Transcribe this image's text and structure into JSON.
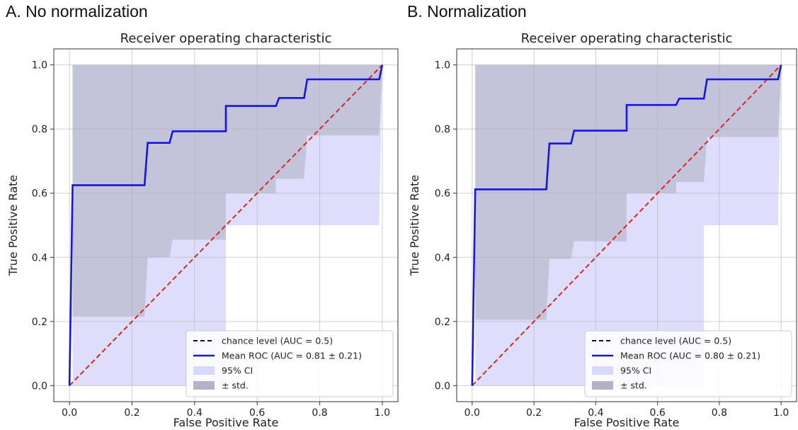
{
  "panels": [
    {
      "heading": "A. No normalization"
    },
    {
      "heading": "B. Normalization"
    }
  ],
  "chart_data": [
    {
      "type": "line",
      "title": "Receiver operating characteristic",
      "xlabel": "False Positive Rate",
      "ylabel": "True Positive Rate",
      "xlim": [
        -0.05,
        1.05
      ],
      "ylim": [
        -0.05,
        1.05
      ],
      "xticks": [
        "0.0",
        "0.2",
        "0.4",
        "0.6",
        "0.8",
        "1.0"
      ],
      "yticks": [
        "0.0",
        "0.2",
        "0.4",
        "0.6",
        "0.8",
        "1.0"
      ],
      "grid": true,
      "legend_position": "lower-right",
      "colors": {
        "chance": "#d62728",
        "mean": "#1515e6",
        "ci": "#d8d8fc",
        "std": "#b3b3c7"
      },
      "series": [
        {
          "name": "chance level (AUC = 0.5)",
          "kind": "line",
          "style": "dashed",
          "x": [
            0,
            1
          ],
          "y": [
            0,
            1
          ]
        },
        {
          "name": "Mean ROC (AUC = 0.81 ± 0.21)",
          "kind": "step",
          "x": [
            0,
            0.01,
            0.01,
            0.24,
            0.25,
            0.32,
            0.33,
            0.5,
            0.5,
            0.66,
            0.67,
            0.75,
            0.76,
            0.99,
            1.0
          ],
          "y": [
            0,
            0.625,
            0.625,
            0.625,
            0.757,
            0.757,
            0.793,
            0.793,
            0.872,
            0.872,
            0.897,
            0.897,
            0.955,
            0.955,
            1.0
          ]
        },
        {
          "name": "95% CI",
          "kind": "band",
          "x": [
            0.01,
            0.5,
            0.5,
            0.99,
            0.99,
            1.0
          ],
          "upper": [
            1.0,
            1.0,
            1.0,
            1.0,
            1.0,
            1.0
          ],
          "lower": [
            0.0,
            0.0,
            0.5,
            0.5,
            0.5,
            1.0
          ]
        },
        {
          "name": "± std.",
          "kind": "band",
          "x": [
            0.01,
            0.24,
            0.25,
            0.32,
            0.33,
            0.5,
            0.5,
            0.66,
            0.66,
            0.75,
            0.76,
            0.99,
            0.99,
            1.0
          ],
          "upper": [
            1.0,
            1.0,
            1.0,
            1.0,
            1.0,
            1.0,
            1.0,
            1.0,
            1.0,
            1.0,
            1.0,
            1.0,
            1.0,
            1.0
          ],
          "lower": [
            0.215,
            0.215,
            0.4,
            0.4,
            0.455,
            0.455,
            0.6,
            0.6,
            0.645,
            0.645,
            0.78,
            0.78,
            0.78,
            1.0
          ]
        }
      ]
    },
    {
      "type": "line",
      "title": "Receiver operating characteristic",
      "xlabel": "False Positive Rate",
      "ylabel": "True Positive Rate",
      "xlim": [
        -0.05,
        1.05
      ],
      "ylim": [
        -0.05,
        1.05
      ],
      "xticks": [
        "0.0",
        "0.2",
        "0.4",
        "0.6",
        "0.8",
        "1.0"
      ],
      "yticks": [
        "0.0",
        "0.2",
        "0.4",
        "0.6",
        "0.8",
        "1.0"
      ],
      "grid": true,
      "legend_position": "lower-right",
      "colors": {
        "chance": "#d62728",
        "mean": "#1515e6",
        "ci": "#d8d8fc",
        "std": "#b3b3c7"
      },
      "series": [
        {
          "name": "chance level (AUC = 0.5)",
          "kind": "line",
          "style": "dashed",
          "x": [
            0,
            1
          ],
          "y": [
            0,
            1
          ]
        },
        {
          "name": "Mean ROC (AUC = 0.80 ± 0.21)",
          "kind": "step",
          "x": [
            0,
            0.01,
            0.01,
            0.24,
            0.25,
            0.32,
            0.33,
            0.5,
            0.5,
            0.66,
            0.67,
            0.75,
            0.76,
            0.99,
            1.0
          ],
          "y": [
            0,
            0.612,
            0.612,
            0.612,
            0.755,
            0.755,
            0.795,
            0.795,
            0.875,
            0.875,
            0.895,
            0.895,
            0.955,
            0.955,
            1.0
          ]
        },
        {
          "name": "95% CI",
          "kind": "band",
          "x": [
            0.01,
            0.75,
            0.75,
            0.99,
            0.99,
            1.0
          ],
          "upper": [
            1.0,
            1.0,
            1.0,
            1.0,
            1.0,
            1.0
          ],
          "lower": [
            0.0,
            0.0,
            0.5,
            0.5,
            0.5,
            1.0
          ]
        },
        {
          "name": "± std.",
          "kind": "band",
          "x": [
            0.01,
            0.24,
            0.25,
            0.32,
            0.33,
            0.5,
            0.5,
            0.66,
            0.66,
            0.75,
            0.76,
            0.99,
            0.99,
            1.0
          ],
          "upper": [
            1.0,
            1.0,
            1.0,
            1.0,
            1.0,
            1.0,
            1.0,
            1.0,
            1.0,
            1.0,
            1.0,
            1.0,
            1.0,
            1.0
          ],
          "lower": [
            0.205,
            0.205,
            0.395,
            0.395,
            0.45,
            0.45,
            0.6,
            0.6,
            0.635,
            0.635,
            0.775,
            0.775,
            0.775,
            1.0
          ]
        }
      ]
    }
  ]
}
